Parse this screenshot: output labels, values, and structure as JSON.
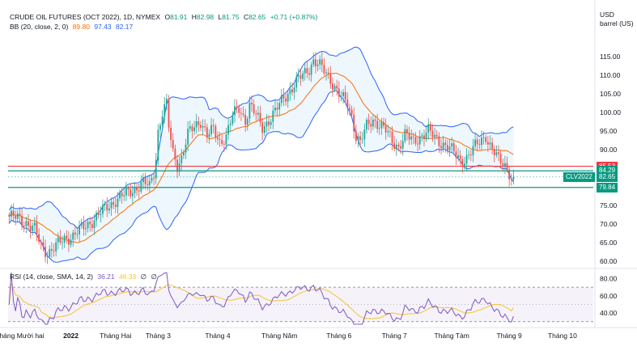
{
  "header": {
    "title": "CRUDE OIL FUTURES (OCT 2022), 1D, NYMEX",
    "ohlc": [
      {
        "k": "O",
        "v": "81.91"
      },
      {
        "k": "H",
        "v": "82.98"
      },
      {
        "k": "L",
        "v": "81.75"
      },
      {
        "k": "C",
        "v": "82.65"
      }
    ],
    "change": "+0.71 (+0.87%)",
    "bb_label": "BB (20, close, 2, 0)",
    "bb_values": [
      "89.80",
      "97.43",
      "82.17"
    ],
    "unit": "USD",
    "unit2": "barrel (US)"
  },
  "rsi_header": {
    "label": "RSI (14, close, SMA, 14, 2)",
    "values": [
      "36.21",
      "46.33",
      "∅",
      "∅"
    ]
  },
  "colors": {
    "up": "#26a69a",
    "down": "#ef5350",
    "band": "#2962ff",
    "basis": "#ff6d00",
    "red_line": "#f23645",
    "green_line": "#089981",
    "rsi": "#7e57c2",
    "rsi_ma": "#f7c331"
  },
  "chart_data": {
    "type": "candlestick",
    "y_ticks": [
      60,
      65,
      70,
      75,
      80,
      85,
      90,
      95,
      100,
      105,
      110,
      115
    ],
    "y_tick_labels": [
      "60.00",
      "65.00",
      "70.00",
      "75.00",
      "80.00",
      "85.00",
      "90.00",
      "95.00",
      "100.00",
      "105.00",
      "110.00",
      "115.00"
    ],
    "ylim": [
      58.5,
      121.5
    ],
    "x_labels": [
      "Tháng Mười hai",
      "2022",
      "Tháng Hai",
      "Tháng 3",
      "Tháng 4",
      "Tháng Năm",
      "Tháng 6",
      "Tháng 7",
      "Tháng Tám",
      "Tháng 9",
      "Tháng 10"
    ],
    "x_label_bars": [
      5,
      29,
      50,
      70,
      98,
      127,
      155,
      181,
      208,
      235,
      260
    ],
    "bars_total": 275,
    "price_lines": [
      {
        "value": 85.53,
        "label": "85.53",
        "color": "#f23645"
      },
      {
        "value": 84.29,
        "label": "84.29",
        "color": "#089981"
      },
      {
        "value": 82.65,
        "label": "82.65",
        "tag": "CLV2022",
        "color": "#089981"
      },
      {
        "value": 79.84,
        "label": "79.84",
        "color": "#089981"
      }
    ],
    "anchors": [
      [
        0,
        72
      ],
      [
        4,
        71.5
      ],
      [
        8,
        70.5
      ],
      [
        12,
        68.5
      ],
      [
        15,
        64
      ],
      [
        18,
        62.5
      ],
      [
        22,
        64
      ],
      [
        26,
        66
      ],
      [
        30,
        67
      ],
      [
        35,
        69
      ],
      [
        40,
        71.5
      ],
      [
        45,
        74
      ],
      [
        50,
        76.5
      ],
      [
        55,
        78
      ],
      [
        60,
        80
      ],
      [
        63,
        81
      ],
      [
        66,
        80
      ],
      [
        68,
        84
      ],
      [
        69,
        88
      ],
      [
        70,
        95
      ],
      [
        72,
        100
      ],
      [
        74,
        102
      ],
      [
        75,
        96
      ],
      [
        77,
        89
      ],
      [
        79,
        86
      ],
      [
        81,
        88
      ],
      [
        84,
        94
      ],
      [
        87,
        96
      ],
      [
        90,
        98
      ],
      [
        93,
        94
      ],
      [
        96,
        95
      ],
      [
        99,
        92
      ],
      [
        102,
        94
      ],
      [
        105,
        99
      ],
      [
        108,
        101
      ],
      [
        111,
        98
      ],
      [
        113,
        102
      ],
      [
        116,
        99
      ],
      [
        119,
        96
      ],
      [
        122,
        98
      ],
      [
        125,
        100
      ],
      [
        127,
        102
      ],
      [
        129,
        104
      ],
      [
        132,
        106
      ],
      [
        135,
        108
      ],
      [
        138,
        110
      ],
      [
        141,
        112
      ],
      [
        143,
        114
      ],
      [
        145,
        113
      ],
      [
        148,
        111
      ],
      [
        151,
        109
      ],
      [
        153,
        107
      ],
      [
        156,
        104
      ],
      [
        159,
        102
      ],
      [
        161,
        99
      ],
      [
        163,
        94
      ],
      [
        165,
        92
      ],
      [
        168,
        96
      ],
      [
        171,
        98
      ],
      [
        174,
        97
      ],
      [
        177,
        95
      ],
      [
        180,
        92
      ],
      [
        183,
        91
      ],
      [
        186,
        94
      ],
      [
        190,
        92
      ],
      [
        194,
        94
      ],
      [
        197,
        95
      ],
      [
        200,
        93
      ],
      [
        203,
        92
      ],
      [
        206,
        91
      ],
      [
        209,
        89
      ],
      [
        212,
        87
      ],
      [
        215,
        88
      ],
      [
        218,
        90
      ],
      [
        221,
        92
      ],
      [
        224,
        94
      ],
      [
        226,
        91
      ],
      [
        228,
        89
      ],
      [
        230,
        87
      ],
      [
        233,
        86
      ],
      [
        235,
        84
      ],
      [
        236,
        82.5
      ],
      [
        237,
        82.65
      ]
    ],
    "rsi_ylim": [
      26,
      88
    ],
    "rsi_ticks": [
      40,
      60,
      80
    ],
    "rsi_tick_labels": [
      "40.00",
      "60.00",
      "80.00"
    ],
    "rsi_bands": [
      30,
      70
    ],
    "rsi_last": 36.21,
    "rsi_ma_last": 46.33
  }
}
